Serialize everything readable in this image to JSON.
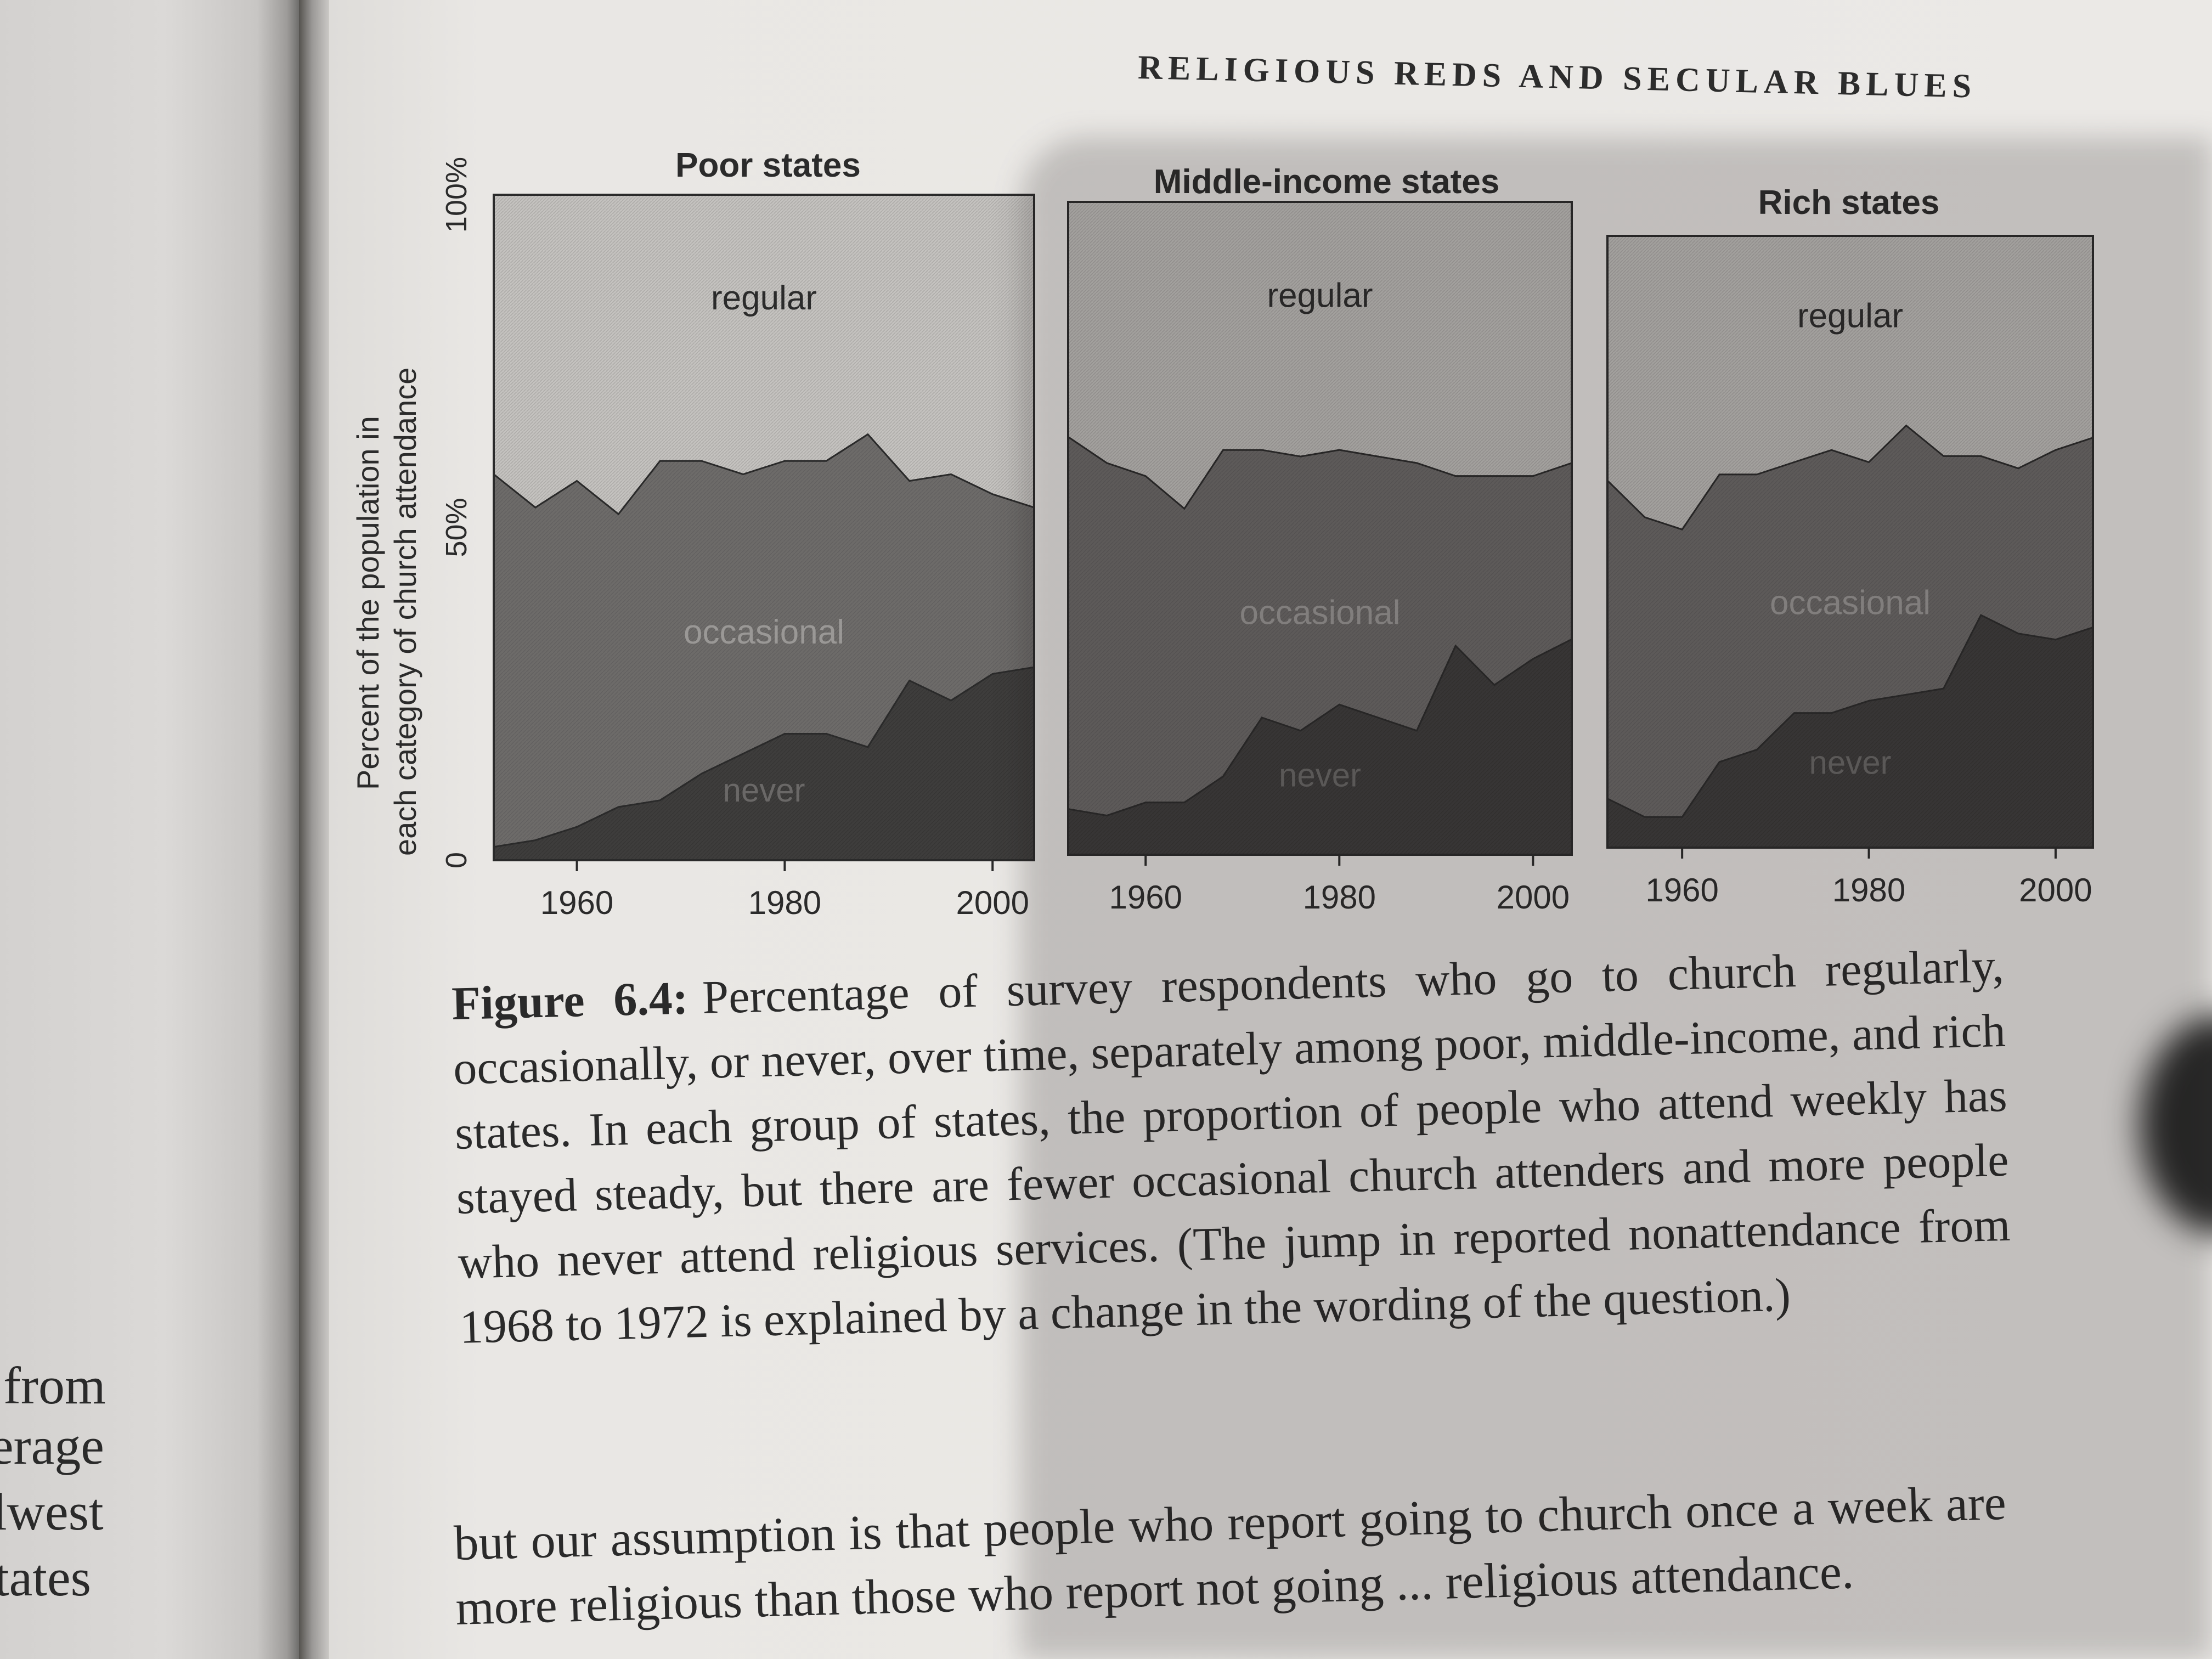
{
  "running_head": "RELIGIOUS REDS AND SECULAR BLUES",
  "left_page_fragments": [
    "from",
    "erage",
    "lwest",
    "tates"
  ],
  "caption": {
    "label": "Figure 6.4:",
    "text": "Percentage of survey respondents who go to church regularly, occasionally, or never, over time, separately among poor, middle-income, and rich states. In each group of states, the proportion of people who attend weekly has stayed steady, but there are fewer occasional church attenders and more people who never attend religious services. (The jump in reported nonattendance from 1968 to 1972 is explained by a change in the wording of the question.)"
  },
  "body_text": "but our assumption is that people who report going to church once a week are more religious than those who report not going ... religious attendance.",
  "colors": {
    "regular": "#c4c2bf",
    "occasional": "#6d6b69",
    "never": "#3e3d3c",
    "regular_label": "#2b2b2b",
    "occasional_label": "#9a9896",
    "never_label": "#6a6867"
  },
  "chart_data": {
    "type": "area",
    "stacked": true,
    "ylabel": "Percent of the population in each category of church attendance",
    "ylim": [
      0,
      100
    ],
    "yticks": [
      {
        "value": 0,
        "label": "0"
      },
      {
        "value": 50,
        "label": "50%"
      },
      {
        "value": 100,
        "label": "100%"
      }
    ],
    "xlim": [
      1952,
      2004
    ],
    "xticks": [
      1960,
      1980,
      2000
    ],
    "area_labels": {
      "regular": "regular",
      "occasional": "occasional",
      "never": "never"
    },
    "panels": [
      {
        "title": "Poor states",
        "x": [
          1952,
          1956,
          1960,
          1964,
          1968,
          1972,
          1976,
          1980,
          1984,
          1988,
          1992,
          1996,
          2000,
          2004
        ],
        "never": [
          2,
          3,
          5,
          8,
          9,
          13,
          16,
          19,
          19,
          17,
          27,
          24,
          28,
          29
        ],
        "never_plus_occasional": [
          58,
          53,
          57,
          52,
          60,
          60,
          58,
          60,
          60,
          64,
          57,
          58,
          55,
          53
        ]
      },
      {
        "title": "Middle-income states",
        "x": [
          1952,
          1956,
          1960,
          1964,
          1968,
          1972,
          1976,
          1980,
          1984,
          1988,
          1992,
          1996,
          2000,
          2004
        ],
        "never": [
          7,
          6,
          8,
          8,
          12,
          21,
          19,
          23,
          21,
          19,
          32,
          26,
          30,
          33
        ],
        "never_plus_occasional": [
          64,
          60,
          58,
          53,
          62,
          62,
          61,
          62,
          61,
          60,
          58,
          58,
          58,
          60
        ]
      },
      {
        "title": "Rich states",
        "x": [
          1952,
          1956,
          1960,
          1964,
          1968,
          1972,
          1976,
          1980,
          1984,
          1988,
          1992,
          1996,
          2000,
          2004
        ],
        "never": [
          8,
          5,
          5,
          14,
          16,
          22,
          22,
          24,
          25,
          26,
          38,
          35,
          34,
          36
        ],
        "never_plus_occasional": [
          60,
          54,
          52,
          61,
          61,
          63,
          65,
          63,
          69,
          64,
          64,
          62,
          65,
          67
        ]
      }
    ]
  }
}
